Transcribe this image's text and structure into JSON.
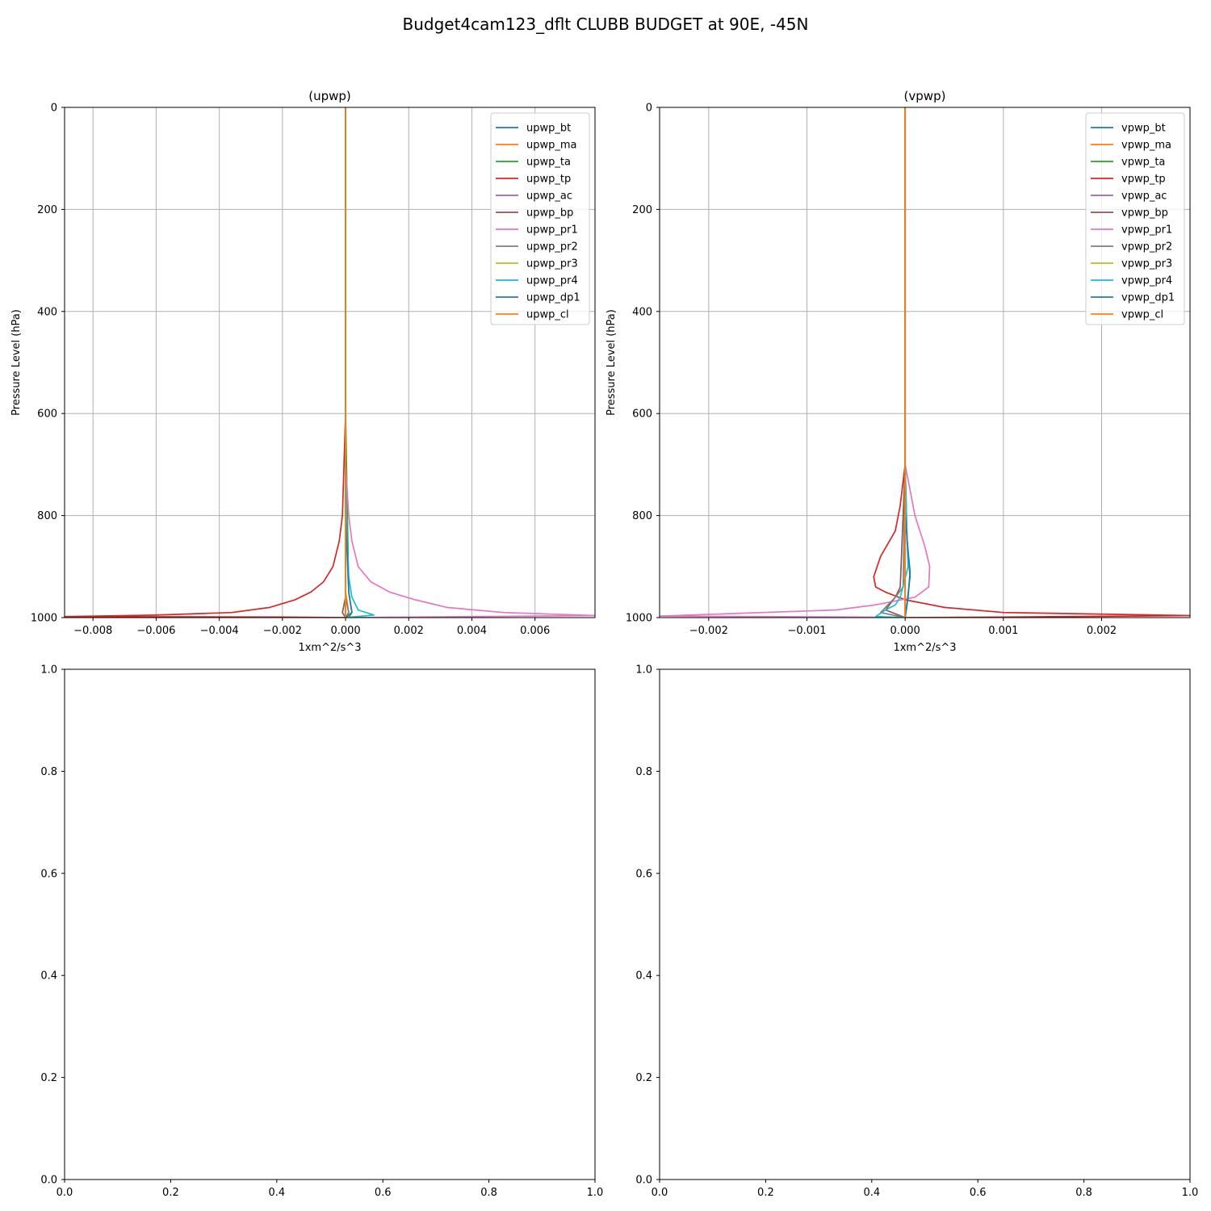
{
  "figure": {
    "title": "Budget4cam123_dflt CLUBB BUDGET at 90E, -45N"
  },
  "chart_data": [
    {
      "type": "line",
      "title": "(upwp)",
      "xlabel": "1xm^2/s^3",
      "ylabel": "Pressure Level (hPa)",
      "xlim": [
        -0.0089,
        0.0079
      ],
      "ylim": [
        1000,
        0
      ],
      "y_inverted": true,
      "xticks": [
        -0.008,
        -0.006,
        -0.004,
        -0.002,
        0.0,
        0.002,
        0.004,
        0.006
      ],
      "xtick_labels": [
        "−0.008",
        "−0.006",
        "−0.004",
        "−0.002",
        "0.000",
        "0.002",
        "0.004",
        "0.006"
      ],
      "yticks": [
        0,
        200,
        400,
        600,
        800,
        1000
      ],
      "ytick_labels": [
        "0",
        "200",
        "400",
        "600",
        "800",
        "1000"
      ],
      "grid": true,
      "legend": "top-right",
      "series": [
        {
          "name": "upwp_bt",
          "color": "#1f77b4",
          "x": [
            0,
            0,
            0,
            0,
            0
          ],
          "y": [
            0,
            600,
            950,
            990,
            1000
          ]
        },
        {
          "name": "upwp_ma",
          "color": "#ff7f0e",
          "x": [
            0,
            0,
            0,
            0.0001,
            0
          ],
          "y": [
            0,
            600,
            950,
            990,
            1000
          ]
        },
        {
          "name": "upwp_ta",
          "color": "#2ca02c",
          "x": [
            0,
            0,
            0.0001,
            0.0002,
            0.0001
          ],
          "y": [
            0,
            600,
            950,
            990,
            1000
          ]
        },
        {
          "name": "upwp_tp",
          "color": "#d62728",
          "x": [
            0,
            0,
            -5e-05,
            -0.0001,
            -0.0002,
            -0.0004,
            -0.0007,
            -0.0011,
            -0.0016,
            -0.0024,
            -0.0036,
            -0.006,
            -0.0089,
            -0.002,
            0.0
          ],
          "y": [
            0,
            600,
            700,
            800,
            850,
            900,
            930,
            950,
            965,
            980,
            990,
            995,
            998,
            999,
            1000
          ]
        },
        {
          "name": "upwp_ac",
          "color": "#9467bd",
          "x": [
            0,
            0,
            0,
            0
          ],
          "y": [
            0,
            600,
            980,
            1000
          ]
        },
        {
          "name": "upwp_bp",
          "color": "#8c564b",
          "x": [
            0,
            0,
            0,
            -0.0001,
            0
          ],
          "y": [
            0,
            600,
            960,
            990,
            1000
          ]
        },
        {
          "name": "upwp_pr1",
          "color": "#e377c2",
          "x": [
            0,
            0,
            0.0001,
            0.0002,
            0.0004,
            0.0008,
            0.0014,
            0.0022,
            0.0032,
            0.005,
            0.0079,
            0.002,
            0.0
          ],
          "y": [
            0,
            700,
            800,
            850,
            900,
            930,
            950,
            965,
            980,
            990,
            996,
            999,
            1000
          ]
        },
        {
          "name": "upwp_pr2",
          "color": "#7f7f7f",
          "x": [
            0,
            0,
            0,
            0.0001,
            0
          ],
          "y": [
            0,
            600,
            960,
            990,
            1000
          ]
        },
        {
          "name": "upwp_pr3",
          "color": "#bcbd22",
          "x": [
            0,
            0,
            0,
            0
          ],
          "y": [
            0,
            600,
            980,
            1000
          ]
        },
        {
          "name": "upwp_pr4",
          "color": "#17becf",
          "x": [
            0,
            0,
            5e-05,
            0.0001,
            0.0002,
            0.0004,
            0.0009,
            0.0
          ],
          "y": [
            0,
            700,
            850,
            920,
            960,
            985,
            995,
            1000
          ]
        },
        {
          "name": "upwp_dp1",
          "color": "#1f77b4",
          "x": [
            0,
            0,
            0.0001,
            0.0002,
            0
          ],
          "y": [
            0,
            800,
            950,
            990,
            1000
          ]
        },
        {
          "name": "upwp_cl",
          "color": "#ff7f0e",
          "x": [
            0,
            0,
            0,
            0
          ],
          "y": [
            0,
            600,
            990,
            1000
          ]
        }
      ]
    },
    {
      "type": "line",
      "title": "(vpwp)",
      "xlabel": "1xm^2/s^3",
      "ylabel": "Pressure Level (hPa)",
      "xlim": [
        -0.0025,
        0.0029
      ],
      "ylim": [
        1000,
        0
      ],
      "y_inverted": true,
      "xticks": [
        -0.002,
        -0.001,
        0.0,
        0.001,
        0.002
      ],
      "xtick_labels": [
        "−0.002",
        "−0.001",
        "0.000",
        "0.001",
        "0.002"
      ],
      "yticks": [
        0,
        200,
        400,
        600,
        800,
        1000
      ],
      "ytick_labels": [
        "0",
        "200",
        "400",
        "600",
        "800",
        "1000"
      ],
      "grid": true,
      "legend": "top-right",
      "series": [
        {
          "name": "vpwp_bt",
          "color": "#1f77b4",
          "x": [
            0,
            0,
            0,
            0
          ],
          "y": [
            0,
            600,
            990,
            1000
          ]
        },
        {
          "name": "vpwp_ma",
          "color": "#ff7f0e",
          "x": [
            0,
            0,
            0,
            0
          ],
          "y": [
            0,
            600,
            990,
            1000
          ]
        },
        {
          "name": "vpwp_ta",
          "color": "#2ca02c",
          "x": [
            0,
            0,
            2e-05,
            5e-05,
            2e-05,
            0
          ],
          "y": [
            0,
            700,
            850,
            920,
            970,
            1000
          ]
        },
        {
          "name": "vpwp_tp",
          "color": "#d62728",
          "x": [
            0,
            0,
            -5e-05,
            -0.0001,
            -0.00025,
            -0.00032,
            -0.0003,
            -0.0002,
            0.0,
            0.0004,
            0.001,
            0.0029,
            0.001,
            0.0
          ],
          "y": [
            0,
            700,
            780,
            830,
            880,
            920,
            940,
            950,
            965,
            980,
            990,
            996,
            999,
            1000
          ]
        },
        {
          "name": "vpwp_ac",
          "color": "#9467bd",
          "x": [
            0,
            0,
            0,
            0
          ],
          "y": [
            0,
            600,
            990,
            1000
          ]
        },
        {
          "name": "vpwp_bp",
          "color": "#8c564b",
          "x": [
            0,
            0,
            -5e-05,
            -0.0001,
            -0.0002,
            0
          ],
          "y": [
            0,
            700,
            940,
            960,
            985,
            1000
          ]
        },
        {
          "name": "vpwp_pr1",
          "color": "#e377c2",
          "x": [
            0,
            0,
            0.0001,
            0.0002,
            0.00025,
            0.00024,
            0.0001,
            -0.0003,
            -0.0007,
            -0.0025,
            -0.0005,
            0.0
          ],
          "y": [
            0,
            700,
            800,
            860,
            900,
            940,
            960,
            975,
            985,
            997,
            999,
            1000
          ]
        },
        {
          "name": "vpwp_pr2",
          "color": "#7f7f7f",
          "x": [
            0,
            0,
            -2e-05,
            -0.0001,
            -0.00025,
            0
          ],
          "y": [
            0,
            700,
            940,
            960,
            990,
            1000
          ]
        },
        {
          "name": "vpwp_pr3",
          "color": "#bcbd22",
          "x": [
            0,
            0,
            0,
            0
          ],
          "y": [
            0,
            600,
            990,
            1000
          ]
        },
        {
          "name": "vpwp_pr4",
          "color": "#17becf",
          "x": [
            0,
            0,
            2e-05,
            3e-05,
            -5e-05,
            -0.0001,
            -0.0002,
            -0.0003,
            0
          ],
          "y": [
            0,
            700,
            850,
            900,
            960,
            975,
            985,
            998,
            1000
          ]
        },
        {
          "name": "vpwp_dp1",
          "color": "#1f77b4",
          "x": [
            0,
            0,
            3e-05,
            5e-05,
            3e-05,
            0
          ],
          "y": [
            0,
            800,
            870,
            910,
            960,
            1000
          ]
        },
        {
          "name": "vpwp_cl",
          "color": "#ff7f0e",
          "x": [
            0,
            0,
            0,
            0
          ],
          "y": [
            0,
            600,
            990,
            1000
          ]
        }
      ]
    },
    {
      "type": "line",
      "title": "",
      "xlabel": "",
      "ylabel": "",
      "xlim": [
        0,
        1
      ],
      "ylim": [
        0,
        1
      ],
      "y_inverted": false,
      "xticks": [
        0.0,
        0.2,
        0.4,
        0.6,
        0.8,
        1.0
      ],
      "xtick_labels": [
        "0.0",
        "0.2",
        "0.4",
        "0.6",
        "0.8",
        "1.0"
      ],
      "yticks": [
        0.0,
        0.2,
        0.4,
        0.6,
        0.8,
        1.0
      ],
      "ytick_labels": [
        "0.0",
        "0.2",
        "0.4",
        "0.6",
        "0.8",
        "1.0"
      ],
      "grid": false,
      "series": []
    },
    {
      "type": "line",
      "title": "",
      "xlabel": "",
      "ylabel": "",
      "xlim": [
        0,
        1
      ],
      "ylim": [
        0,
        1
      ],
      "y_inverted": false,
      "xticks": [
        0.0,
        0.2,
        0.4,
        0.6,
        0.8,
        1.0
      ],
      "xtick_labels": [
        "0.0",
        "0.2",
        "0.4",
        "0.6",
        "0.8",
        "1.0"
      ],
      "yticks": [
        0.0,
        0.2,
        0.4,
        0.6,
        0.8,
        1.0
      ],
      "ytick_labels": [
        "0.0",
        "0.2",
        "0.4",
        "0.6",
        "0.8",
        "1.0"
      ],
      "grid": false,
      "series": []
    }
  ]
}
